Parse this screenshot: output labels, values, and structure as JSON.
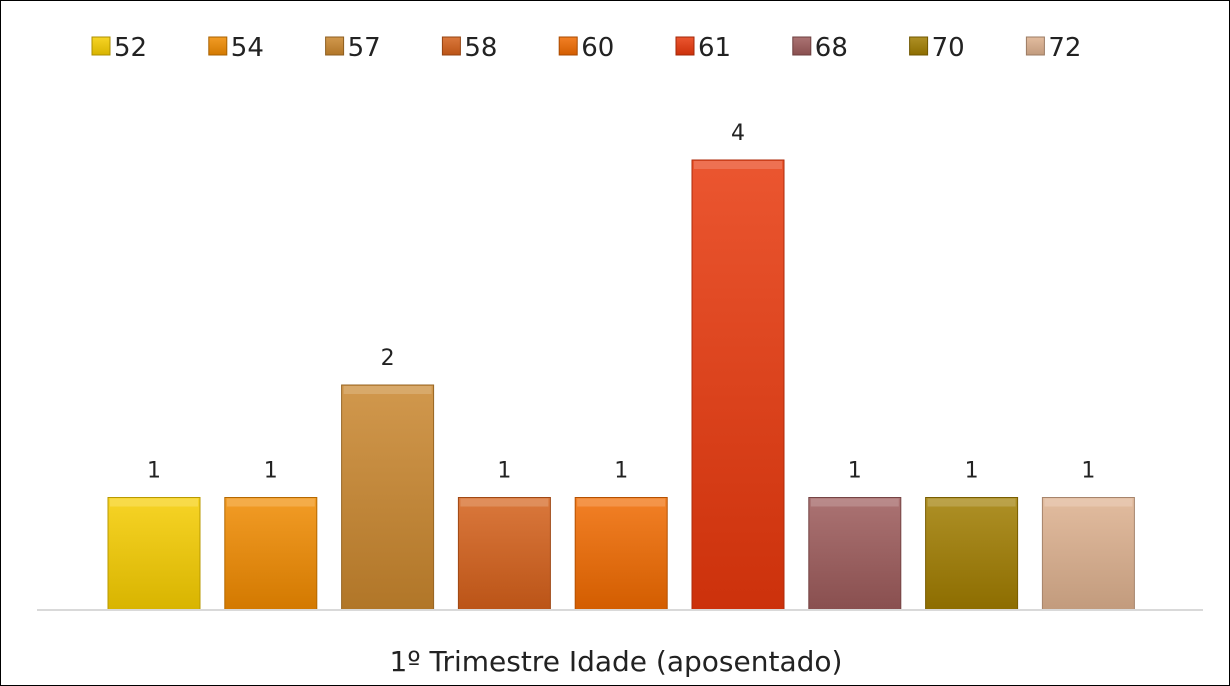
{
  "chart_data": {
    "type": "bar",
    "categories": [
      "52",
      "54",
      "57",
      "58",
      "60",
      "61",
      "68",
      "70",
      "72"
    ],
    "values": [
      1,
      1,
      2,
      1,
      1,
      4,
      1,
      1,
      1
    ],
    "colors": [
      "#F5CC00",
      "#F08A00",
      "#C9862E",
      "#D4601A",
      "#F06A00",
      "#E8380C",
      "#9C5A5A",
      "#A07C00",
      "#DDB08E"
    ],
    "title": "",
    "xlabel": "1º Trimestre Idade (aposentado)",
    "ylabel": "",
    "ylim": [
      0,
      4
    ],
    "legend": "top",
    "grid": false,
    "data_labels": true
  }
}
